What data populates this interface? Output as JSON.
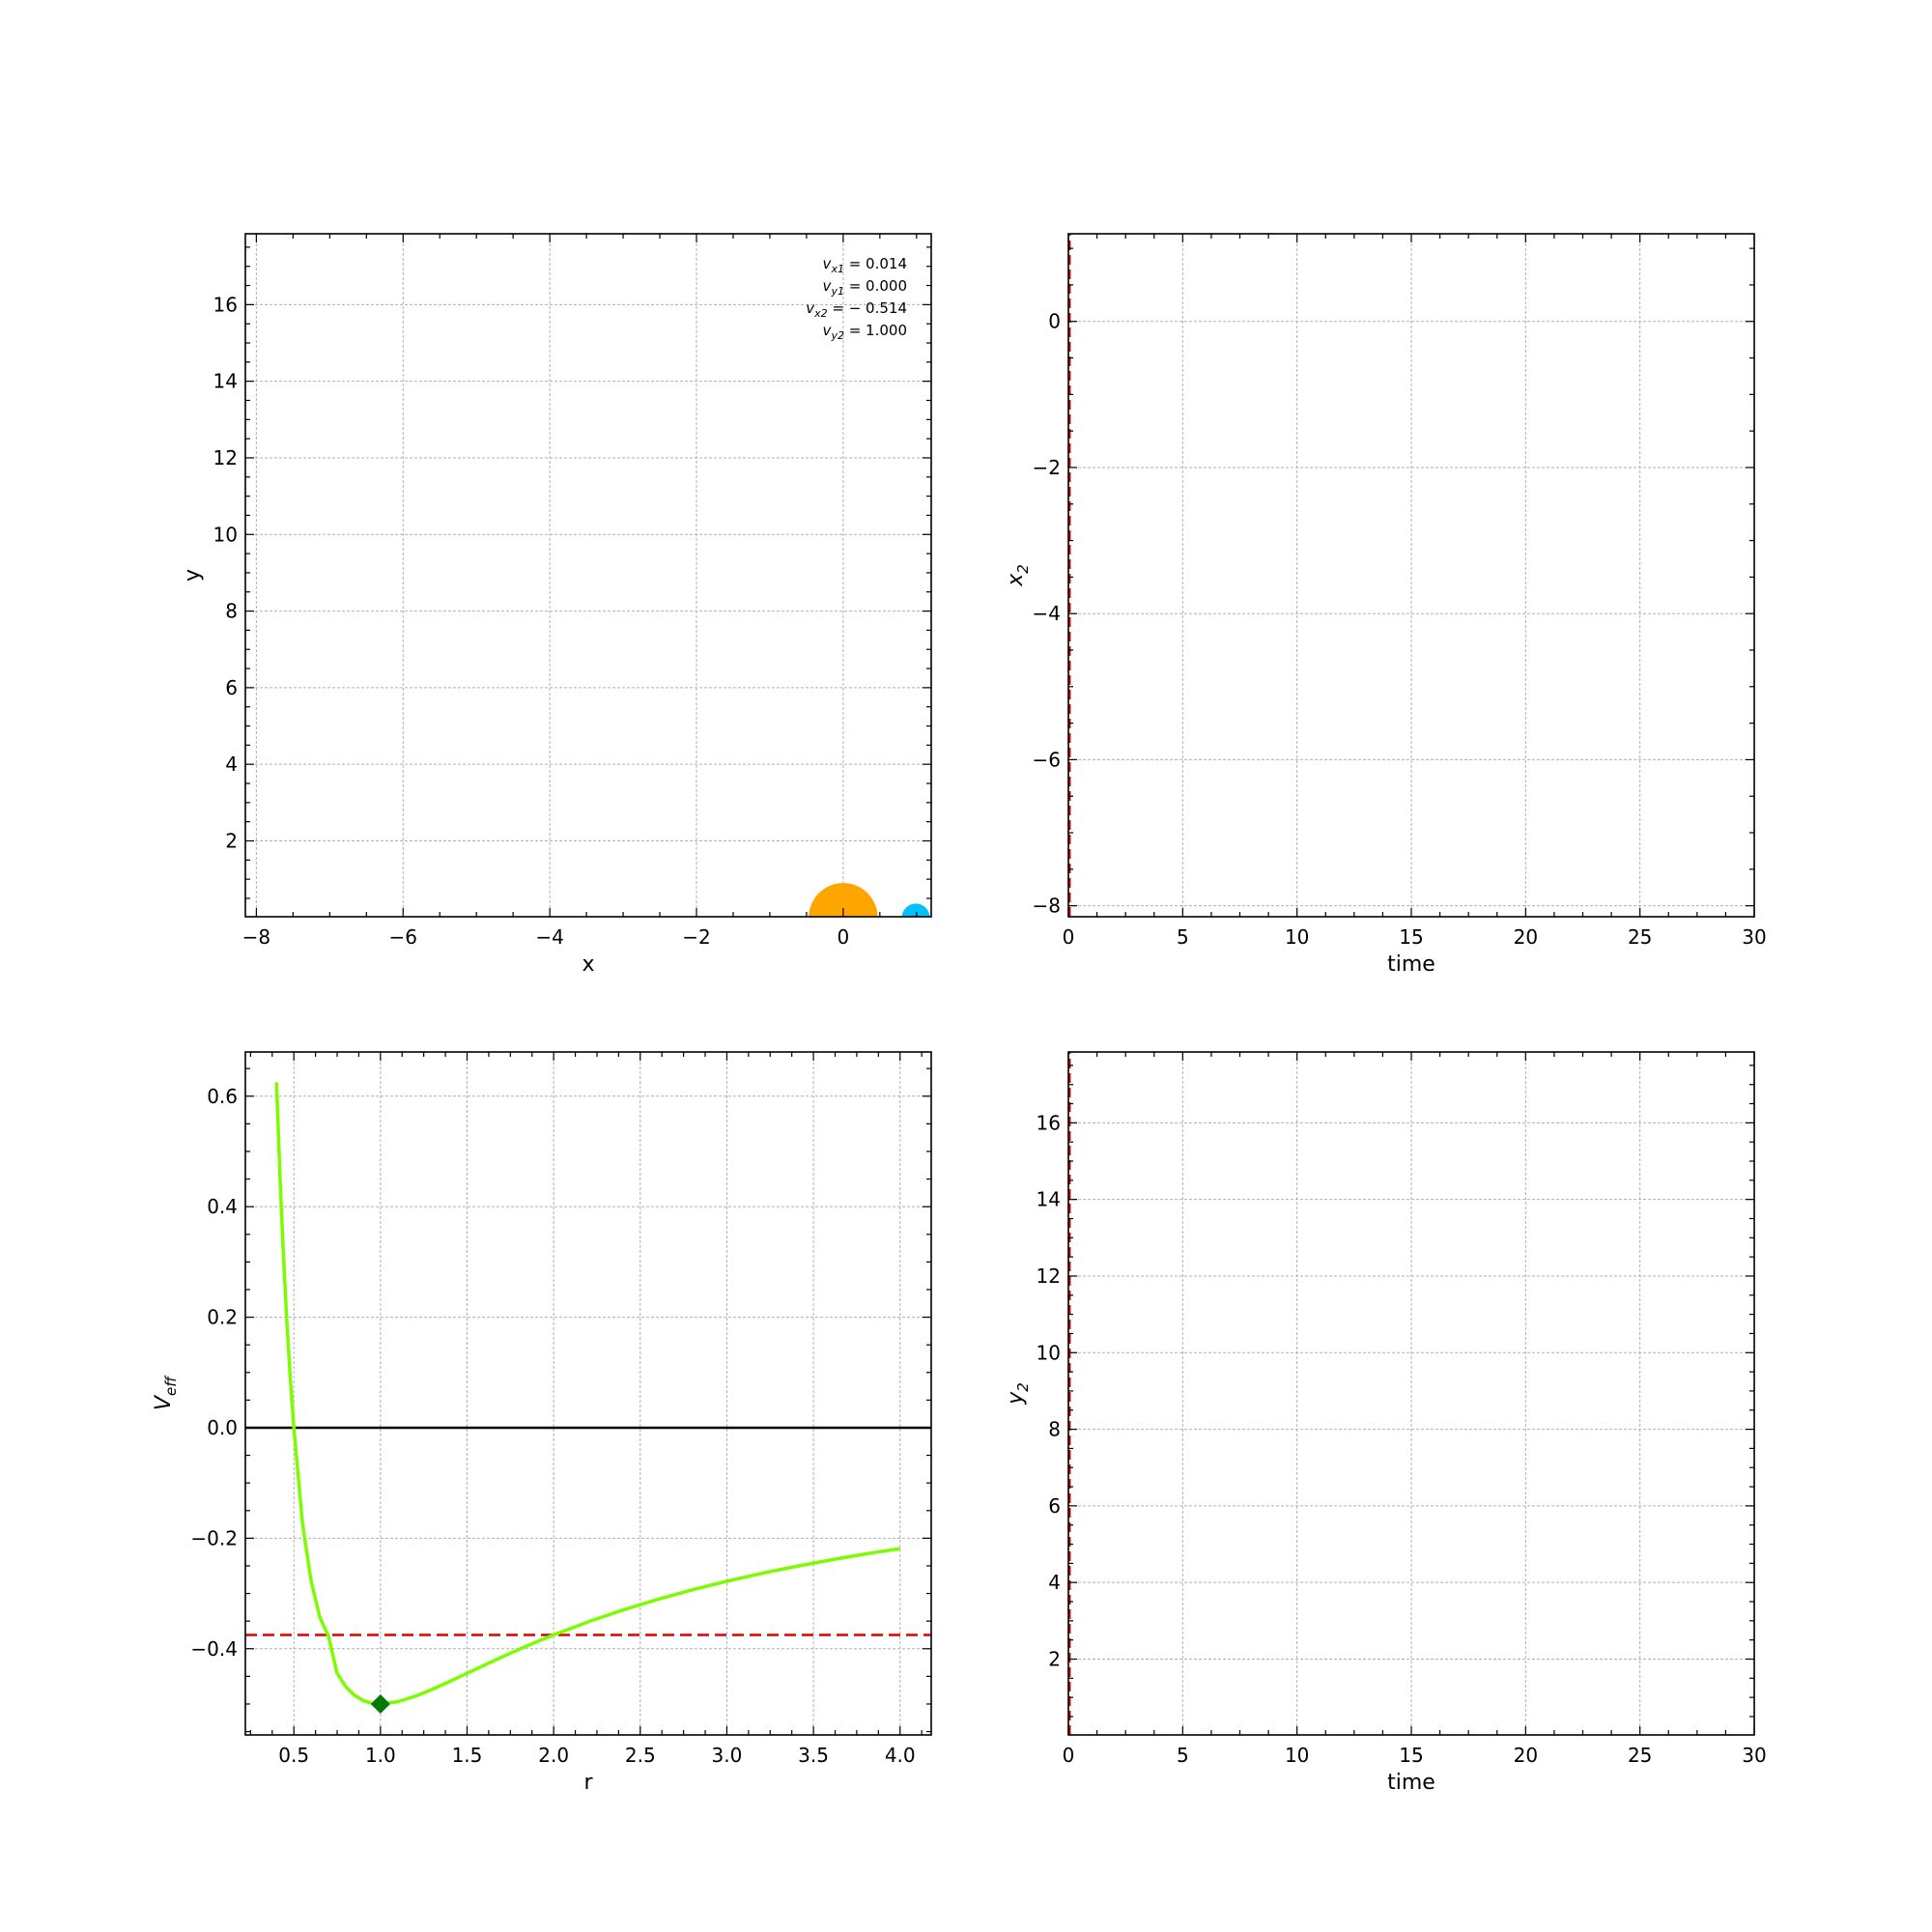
{
  "figure": {
    "background": "#ffffff"
  },
  "chart_data": [
    {
      "id": "orbit",
      "type": "scatter",
      "xlabel": "x",
      "ylabel": "y",
      "xlim": [
        -8.15,
        1.2
      ],
      "ylim": [
        0.02,
        17.85
      ],
      "xticks": [
        -8,
        -6,
        -4,
        -2,
        0
      ],
      "xtick_labels": [
        "−8",
        "−6",
        "−4",
        "−2",
        "0"
      ],
      "yticks": [
        2,
        4,
        6,
        8,
        10,
        12,
        14,
        16
      ],
      "ytick_labels": [
        "2",
        "4",
        "6",
        "8",
        "10",
        "12",
        "14",
        "16"
      ],
      "grid": true,
      "bodies": [
        {
          "x": 0,
          "y": 0,
          "radius": 0.47,
          "color": "#ffa500"
        },
        {
          "x": 0.99,
          "y": 0,
          "radius": 0.19,
          "color": "#00bfff"
        }
      ],
      "annotation": {
        "placement": "top-right",
        "lines": [
          {
            "sym": "v",
            "sub": "x1",
            "value": " = 0.014"
          },
          {
            "sym": "v",
            "sub": "y1",
            "value": " = 0.000"
          },
          {
            "sym": "v",
            "sub": "x2",
            "value": " = − 0.514"
          },
          {
            "sym": "v",
            "sub": "y2",
            "value": " = 1.000"
          }
        ]
      }
    },
    {
      "id": "x2-time",
      "type": "line",
      "xlabel": "time",
      "ylabel_sym": "x",
      "ylabel_sub": "2",
      "xlim": [
        0,
        30
      ],
      "ylim": [
        -8.15,
        1.2
      ],
      "xticks": [
        0,
        5,
        10,
        15,
        20,
        25,
        30
      ],
      "xtick_labels": [
        "0",
        "5",
        "10",
        "15",
        "20",
        "25",
        "30"
      ],
      "yticks": [
        -8,
        -6,
        -4,
        -2,
        0
      ],
      "ytick_labels": [
        "−8",
        "−6",
        "−4",
        "−2",
        "0"
      ],
      "grid": true,
      "series": [
        {
          "style": "dashed",
          "color": "#cc0000",
          "x": [
            0.05,
            0.05
          ],
          "y": [
            -8.15,
            1.2
          ]
        }
      ]
    },
    {
      "id": "veff",
      "type": "line",
      "xlabel": "r",
      "ylabel_sym": "V",
      "ylabel_sub": "eff",
      "xlim": [
        0.22,
        4.18
      ],
      "ylim": [
        -0.556,
        0.68
      ],
      "xticks": [
        0.5,
        1.0,
        1.5,
        2.0,
        2.5,
        3.0,
        3.5,
        4.0
      ],
      "xtick_labels": [
        "0.5",
        "1.0",
        "1.5",
        "2.0",
        "2.5",
        "3.0",
        "3.5",
        "4.0"
      ],
      "yticks": [
        -0.4,
        -0.2,
        0.0,
        0.2,
        0.4,
        0.6
      ],
      "ytick_labels": [
        "−0.4",
        "−0.2",
        "0.0",
        "0.2",
        "0.4",
        "0.6"
      ],
      "grid": true,
      "curve": {
        "color": "#7cfc00",
        "r": [
          0.4,
          0.42,
          0.44,
          0.46,
          0.48,
          0.5,
          0.55,
          0.6,
          0.65,
          0.7,
          0.75,
          0.8,
          0.85,
          0.9,
          0.95,
          1.0,
          1.1,
          1.2,
          1.3,
          1.4,
          1.5,
          1.6,
          1.7,
          1.8,
          1.9,
          2.0,
          2.2,
          2.4,
          2.6,
          2.8,
          3.0,
          3.2,
          3.4,
          3.6,
          3.8,
          4.0
        ],
        "v": [
          0.625,
          0.4535,
          0.31,
          0.1891,
          0.0868,
          0.0,
          -0.1736,
          -0.2778,
          -0.3432,
          -0.3776,
          -0.4444,
          -0.4688,
          -0.4844,
          -0.4938,
          -0.4986,
          -0.5,
          -0.4959,
          -0.4861,
          -0.4734,
          -0.4592,
          -0.4444,
          -0.4297,
          -0.4152,
          -0.4012,
          -0.3878,
          -0.375,
          -0.3512,
          -0.3299,
          -0.3107,
          -0.2934,
          -0.2778,
          -0.2637,
          -0.2509,
          -0.2392,
          -0.2285,
          -0.2188
        ]
      },
      "zero_line": {
        "y": 0.0,
        "color": "#000000"
      },
      "energy_line": {
        "y": -0.375,
        "color": "#dd0000",
        "style": "dashed"
      },
      "minimum_marker": {
        "x": 1.0,
        "y": -0.5,
        "color": "#007a00",
        "shape": "diamond"
      }
    },
    {
      "id": "y2-time",
      "type": "line",
      "xlabel": "time",
      "ylabel_sym": "y",
      "ylabel_sub": "2",
      "xlim": [
        0,
        30
      ],
      "ylim": [
        0.02,
        17.85
      ],
      "xticks": [
        0,
        5,
        10,
        15,
        20,
        25,
        30
      ],
      "xtick_labels": [
        "0",
        "5",
        "10",
        "15",
        "20",
        "25",
        "30"
      ],
      "yticks": [
        2,
        4,
        6,
        8,
        10,
        12,
        14,
        16
      ],
      "ytick_labels": [
        "2",
        "4",
        "6",
        "8",
        "10",
        "12",
        "14",
        "16"
      ],
      "grid": true,
      "series": [
        {
          "style": "dashed",
          "color": "#cc0000",
          "x": [
            0.05,
            0.05
          ],
          "y": [
            0.02,
            17.85
          ]
        }
      ]
    }
  ]
}
